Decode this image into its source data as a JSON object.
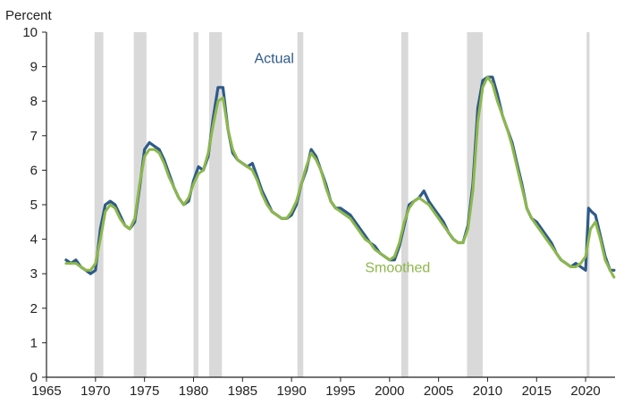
{
  "chart_data": {
    "type": "line",
    "title": "",
    "ylabel": "Percent",
    "xlabel": "",
    "xlim": [
      1965,
      2023
    ],
    "ylim": [
      0,
      10
    ],
    "x_ticks": [
      1965,
      1970,
      1975,
      1980,
      1985,
      1990,
      1995,
      2000,
      2005,
      2010,
      2015,
      2020
    ],
    "y_ticks": [
      0,
      1,
      2,
      3,
      4,
      5,
      6,
      7,
      8,
      9,
      10
    ],
    "colors": {
      "actual": "#2f5a8a",
      "smoothed": "#8db84a",
      "recession": "#d9d9d9"
    },
    "recessions": [
      [
        1969.9,
        1970.8
      ],
      [
        1973.9,
        1975.2
      ],
      [
        1980.0,
        1980.5
      ],
      [
        1981.6,
        1982.9
      ],
      [
        1990.6,
        1991.2
      ],
      [
        2001.2,
        2001.9
      ],
      [
        2007.9,
        2009.5
      ],
      [
        2020.1,
        2020.4
      ]
    ],
    "annotations": [
      {
        "text": "Actual",
        "series": "Actual",
        "x": 1986.2,
        "y": 9.1
      },
      {
        "text": "Smoothed",
        "series": "Smoothed",
        "x": 1997.5,
        "y": 3.05
      }
    ],
    "series": [
      {
        "name": "Actual",
        "x": [
          1967.0,
          1967.5,
          1968.0,
          1968.5,
          1969.0,
          1969.5,
          1970.0,
          1970.5,
          1971.0,
          1971.5,
          1972.0,
          1972.5,
          1973.0,
          1973.5,
          1974.0,
          1974.5,
          1975.0,
          1975.5,
          1976.0,
          1976.5,
          1977.0,
          1977.5,
          1978.0,
          1978.5,
          1979.0,
          1979.5,
          1980.0,
          1980.5,
          1981.0,
          1981.5,
          1982.0,
          1982.5,
          1983.0,
          1983.5,
          1984.0,
          1984.5,
          1985.0,
          1985.5,
          1986.0,
          1986.5,
          1987.0,
          1987.5,
          1988.0,
          1988.5,
          1989.0,
          1989.5,
          1990.0,
          1990.5,
          1991.0,
          1991.5,
          1992.0,
          1992.5,
          1993.0,
          1993.5,
          1994.0,
          1994.5,
          1995.0,
          1995.5,
          1996.0,
          1996.5,
          1997.0,
          1997.5,
          1998.0,
          1998.5,
          1999.0,
          1999.5,
          2000.0,
          2000.5,
          2001.0,
          2001.5,
          2002.0,
          2002.5,
          2003.0,
          2003.5,
          2004.0,
          2004.5,
          2005.0,
          2005.5,
          2006.0,
          2006.5,
          2007.0,
          2007.5,
          2008.0,
          2008.5,
          2009.0,
          2009.5,
          2010.0,
          2010.5,
          2011.0,
          2011.5,
          2012.0,
          2012.5,
          2013.0,
          2013.5,
          2014.0,
          2014.5,
          2015.0,
          2015.5,
          2016.0,
          2016.5,
          2017.0,
          2017.5,
          2018.0,
          2018.5,
          2019.0,
          2019.5,
          2020.0,
          2020.3,
          2020.6,
          2021.0,
          2021.5,
          2022.0,
          2022.5,
          2022.9
        ],
        "values": [
          3.4,
          3.3,
          3.4,
          3.2,
          3.1,
          3.0,
          3.1,
          4.3,
          5.0,
          5.1,
          5.0,
          4.7,
          4.4,
          4.3,
          4.5,
          5.5,
          6.6,
          6.8,
          6.7,
          6.6,
          6.3,
          5.9,
          5.5,
          5.2,
          5.0,
          5.1,
          5.7,
          6.1,
          6.0,
          6.4,
          7.5,
          8.4,
          8.4,
          7.2,
          6.5,
          6.3,
          6.2,
          6.1,
          6.2,
          5.8,
          5.4,
          5.1,
          4.8,
          4.7,
          4.6,
          4.6,
          4.7,
          5.0,
          5.6,
          6.0,
          6.6,
          6.4,
          6.0,
          5.6,
          5.1,
          4.9,
          4.9,
          4.8,
          4.7,
          4.5,
          4.3,
          4.1,
          3.9,
          3.8,
          3.6,
          3.5,
          3.4,
          3.4,
          3.8,
          4.4,
          5.0,
          5.1,
          5.2,
          5.4,
          5.1,
          4.9,
          4.7,
          4.5,
          4.2,
          4.0,
          3.9,
          3.9,
          4.4,
          5.6,
          7.8,
          8.6,
          8.7,
          8.7,
          8.2,
          7.6,
          7.2,
          6.8,
          6.2,
          5.6,
          4.9,
          4.6,
          4.5,
          4.3,
          4.1,
          3.9,
          3.6,
          3.4,
          3.3,
          3.2,
          3.3,
          3.2,
          3.1,
          4.9,
          4.8,
          4.7,
          4.1,
          3.5,
          3.1,
          3.1
        ]
      },
      {
        "name": "Smoothed",
        "x": [
          1967.0,
          1967.5,
          1968.0,
          1968.5,
          1969.0,
          1969.5,
          1970.0,
          1970.5,
          1971.0,
          1971.5,
          1972.0,
          1972.5,
          1973.0,
          1973.5,
          1974.0,
          1974.5,
          1975.0,
          1975.5,
          1976.0,
          1976.5,
          1977.0,
          1977.5,
          1978.0,
          1978.5,
          1979.0,
          1979.5,
          1980.0,
          1980.5,
          1981.0,
          1981.5,
          1982.0,
          1982.5,
          1983.0,
          1983.5,
          1984.0,
          1984.5,
          1985.0,
          1985.5,
          1986.0,
          1986.5,
          1987.0,
          1987.5,
          1988.0,
          1988.5,
          1989.0,
          1989.5,
          1990.0,
          1990.5,
          1991.0,
          1991.5,
          1992.0,
          1992.5,
          1993.0,
          1993.5,
          1994.0,
          1994.5,
          1995.0,
          1995.5,
          1996.0,
          1996.5,
          1997.0,
          1997.5,
          1998.0,
          1998.5,
          1999.0,
          1999.5,
          2000.0,
          2000.5,
          2001.0,
          2001.5,
          2002.0,
          2002.5,
          2003.0,
          2003.5,
          2004.0,
          2004.5,
          2005.0,
          2005.5,
          2006.0,
          2006.5,
          2007.0,
          2007.5,
          2008.0,
          2008.5,
          2009.0,
          2009.5,
          2010.0,
          2010.5,
          2011.0,
          2011.5,
          2012.0,
          2012.5,
          2013.0,
          2013.5,
          2014.0,
          2014.5,
          2015.0,
          2015.5,
          2016.0,
          2016.5,
          2017.0,
          2017.5,
          2018.0,
          2018.5,
          2019.0,
          2019.5,
          2020.0,
          2020.5,
          2021.0,
          2021.5,
          2022.0,
          2022.5,
          2022.9
        ],
        "values": [
          3.3,
          3.3,
          3.3,
          3.2,
          3.1,
          3.1,
          3.3,
          4.0,
          4.8,
          5.0,
          4.9,
          4.6,
          4.4,
          4.3,
          4.6,
          5.6,
          6.4,
          6.6,
          6.6,
          6.5,
          6.2,
          5.8,
          5.5,
          5.2,
          5.0,
          5.2,
          5.6,
          5.9,
          6.0,
          6.5,
          7.3,
          8.0,
          8.1,
          7.2,
          6.6,
          6.3,
          6.2,
          6.1,
          6.0,
          5.7,
          5.3,
          5.0,
          4.8,
          4.7,
          4.6,
          4.6,
          4.8,
          5.1,
          5.6,
          6.1,
          6.5,
          6.3,
          6.0,
          5.5,
          5.1,
          4.9,
          4.8,
          4.7,
          4.6,
          4.4,
          4.2,
          4.0,
          3.9,
          3.7,
          3.6,
          3.5,
          3.4,
          3.5,
          3.9,
          4.5,
          4.9,
          5.1,
          5.2,
          5.1,
          5.0,
          4.8,
          4.6,
          4.4,
          4.2,
          4.0,
          3.9,
          3.9,
          4.3,
          5.4,
          7.4,
          8.4,
          8.7,
          8.5,
          8.0,
          7.6,
          7.2,
          6.7,
          6.1,
          5.5,
          4.9,
          4.6,
          4.4,
          4.2,
          4.0,
          3.8,
          3.6,
          3.4,
          3.3,
          3.2,
          3.2,
          3.3,
          3.5,
          4.3,
          4.5,
          4.0,
          3.4,
          3.1,
          2.9
        ]
      }
    ]
  }
}
